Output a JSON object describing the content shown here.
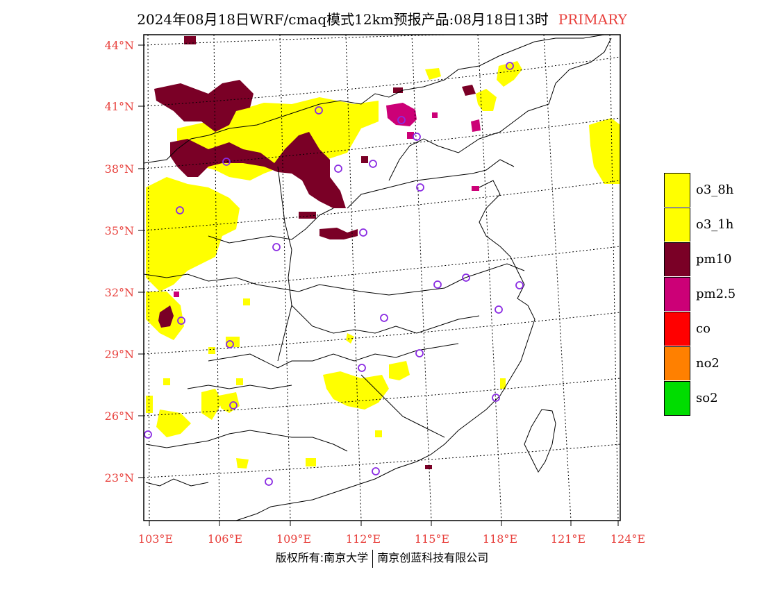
{
  "header": {
    "title": "2024年08月18日WRF/cmaq模式12km预报产品:08月18日13时",
    "tag": "PRIMARY"
  },
  "map": {
    "lat_labels": [
      "44°N",
      "41°N",
      "38°N",
      "35°N",
      "32°N",
      "29°N",
      "26°N",
      "23°N"
    ],
    "lon_labels": [
      "103°E",
      "106°E",
      "109°E",
      "112°E",
      "115°E",
      "118°E",
      "121°E",
      "124°E"
    ]
  },
  "legend": {
    "items": [
      {
        "label": "o3_8h",
        "color": "#ffff00"
      },
      {
        "label": "o3_1h",
        "color": "#ffff00"
      },
      {
        "label": "pm10",
        "color": "#7a0026"
      },
      {
        "label": "pm2.5",
        "color": "#cc0077"
      },
      {
        "label": "co",
        "color": "#ff0000"
      },
      {
        "label": "no2",
        "color": "#ff8000"
      },
      {
        "label": "so2",
        "color": "#00dd00"
      }
    ]
  },
  "footer": {
    "left": "版权所有:南京大学",
    "right": "南京创蓝科技有限公司"
  },
  "colors": {
    "pollutant_o3": "#ffff00",
    "pollutant_pm10": "#7a0026",
    "pollutant_pm25": "#cc0077",
    "city_marker": "#8a2be2",
    "axis_label": "#e8403c"
  }
}
